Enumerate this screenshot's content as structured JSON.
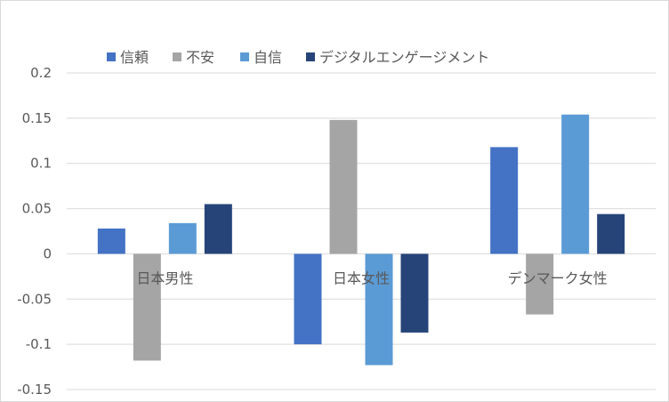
{
  "chart_data": {
    "type": "bar",
    "title": "",
    "xlabel": "",
    "ylabel": "",
    "categories": [
      "日本男性",
      "日本女性",
      "デンマーク女性"
    ],
    "series": [
      {
        "name": "信頼",
        "color": "#4472C4",
        "values": [
          0.028,
          -0.1,
          0.118
        ]
      },
      {
        "name": "不安",
        "color": "#A5A5A5",
        "values": [
          -0.118,
          0.148,
          -0.067
        ]
      },
      {
        "name": "自信",
        "color": "#5B9BD5",
        "values": [
          0.034,
          -0.123,
          0.154
        ]
      },
      {
        "name": "デジタルエンゲージメント",
        "color": "#264478",
        "values": [
          0.055,
          -0.087,
          0.044
        ]
      }
    ],
    "ylim": [
      -0.15,
      0.2
    ],
    "yticks": [
      0.2,
      0.15,
      0.1,
      0.05,
      0,
      -0.05,
      -0.1,
      -0.15
    ],
    "ytick_labels": [
      "0.2",
      "0.15",
      "0.1",
      "0.05",
      "0",
      "-0.05",
      "-0.1",
      "-0.15"
    ],
    "grid": true,
    "legend_position": "top-left",
    "gridline_color": "#d9d9d9"
  }
}
